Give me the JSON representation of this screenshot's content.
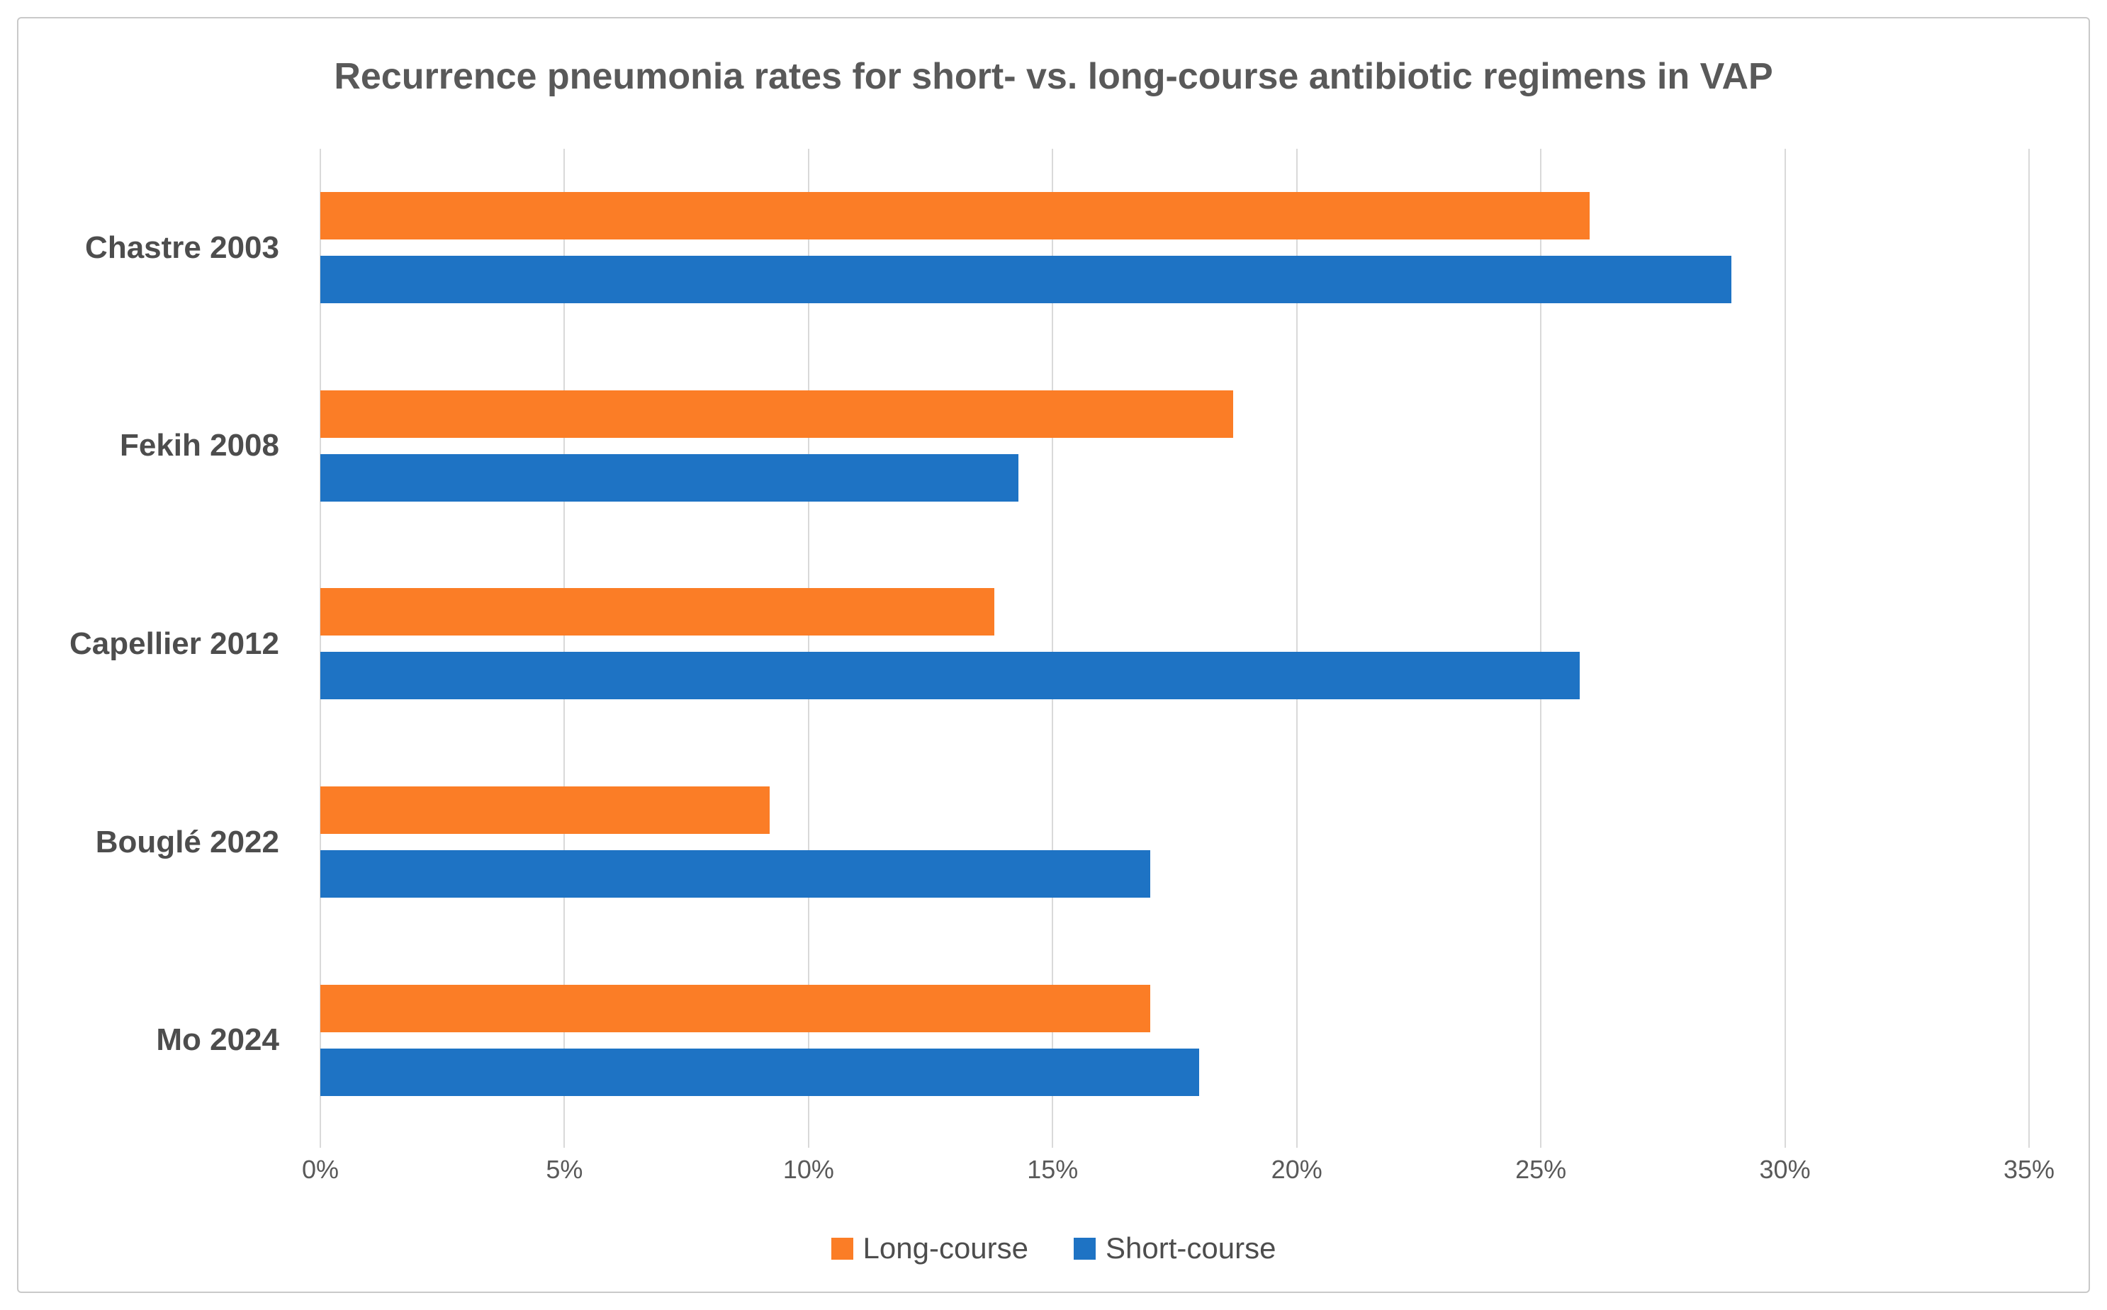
{
  "chart_data": {
    "type": "bar",
    "orientation": "horizontal",
    "title": "Recurrence pneumonia rates for short- vs. long-course antibiotic regimens in VAP",
    "categories": [
      "Chastre 2003",
      "Fekih 2008",
      "Capellier 2012",
      "Bouglé 2022",
      "Mo 2024"
    ],
    "series": [
      {
        "name": "Long-course",
        "color": "#FB7D26",
        "values": [
          26.0,
          18.7,
          13.8,
          9.2,
          17.0
        ]
      },
      {
        "name": "Short-course",
        "color": "#1E73C4",
        "values": [
          28.9,
          14.3,
          25.8,
          17.0,
          18.0
        ]
      }
    ],
    "xlabel": "",
    "ylabel": "",
    "xlim": [
      0,
      35
    ],
    "x_ticks": [
      "0%",
      "5%",
      "10%",
      "15%",
      "20%",
      "25%",
      "30%",
      "35%"
    ],
    "grid": "vertical",
    "legend_position": "bottom",
    "colors": {
      "long_course": "#FB7D26",
      "short_course": "#1E73C4",
      "text_gray": "#595959",
      "gridline": "#D9D9D9",
      "frame_border": "#C9C9C9"
    }
  }
}
